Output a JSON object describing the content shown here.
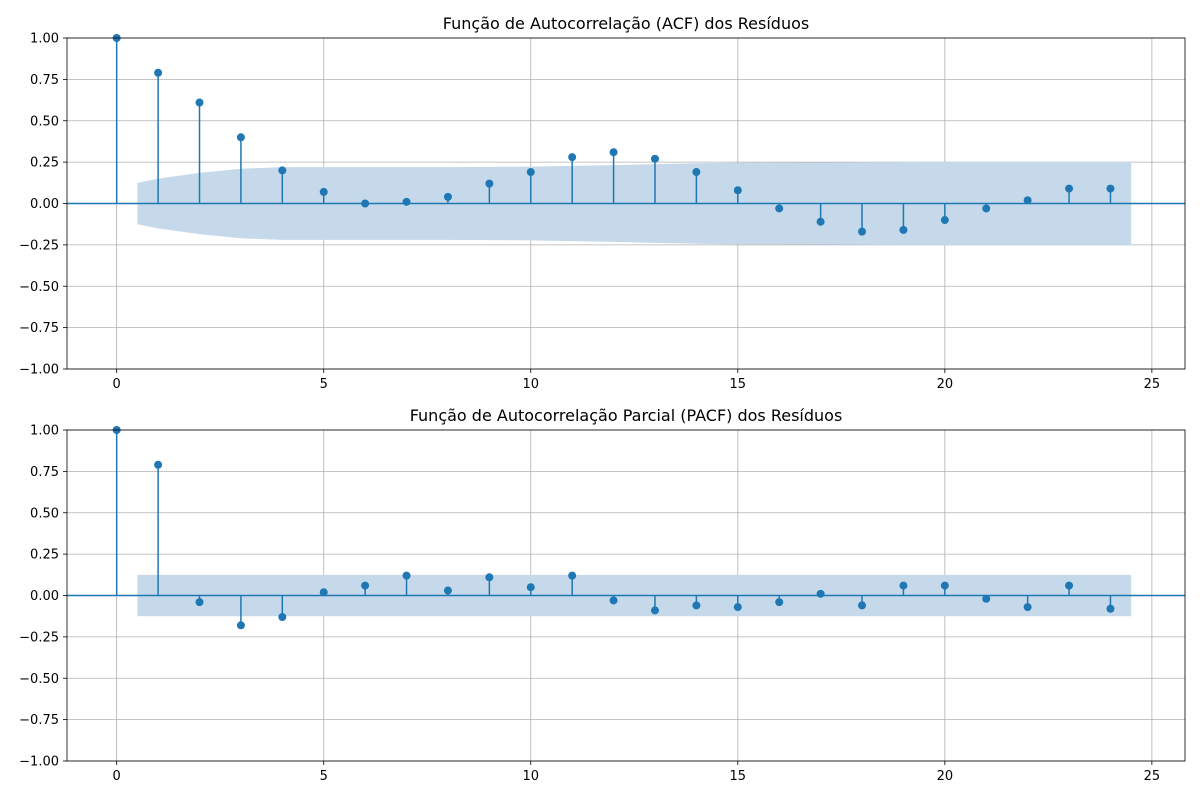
{
  "chart_data": [
    {
      "type": "stem",
      "title": "Função de Autocorrelação (ACF) dos Resíduos",
      "xlabel": "",
      "ylabel": "",
      "xlim": [
        -1.2,
        25.8
      ],
      "ylim": [
        -1.0,
        1.0
      ],
      "xticks": [
        0,
        5,
        10,
        15,
        20,
        25
      ],
      "yticks": [
        -1.0,
        -0.75,
        -0.5,
        -0.25,
        0.0,
        0.25,
        0.5,
        0.75,
        1.0
      ],
      "xtick_labels": [
        "0",
        "5",
        "10",
        "15",
        "20",
        "25"
      ],
      "ytick_labels": [
        "−1.00",
        "−0.75",
        "−0.50",
        "−0.25",
        "0.00",
        "0.25",
        "0.50",
        "0.75",
        "1.00"
      ],
      "grid": true,
      "lags": [
        0,
        1,
        2,
        3,
        4,
        5,
        6,
        7,
        8,
        9,
        10,
        11,
        12,
        13,
        14,
        15,
        16,
        17,
        18,
        19,
        20,
        21,
        22,
        23,
        24
      ],
      "values": [
        1.0,
        0.79,
        0.61,
        0.4,
        0.2,
        0.07,
        0.0,
        0.01,
        0.04,
        0.12,
        0.19,
        0.28,
        0.31,
        0.27,
        0.19,
        0.08,
        -0.03,
        -0.11,
        -0.17,
        -0.16,
        -0.1,
        -0.03,
        0.02,
        0.09,
        0.09
      ],
      "confidence_band": {
        "lags": [
          0.5,
          1,
          2,
          3,
          4,
          5,
          6,
          7,
          8,
          9,
          10,
          11,
          12,
          13,
          14,
          15,
          16,
          17,
          18,
          19,
          20,
          21,
          22,
          23,
          24,
          24.5
        ],
        "upper": [
          0.125,
          0.15,
          0.185,
          0.21,
          0.22,
          0.22,
          0.22,
          0.22,
          0.22,
          0.221,
          0.223,
          0.227,
          0.232,
          0.238,
          0.243,
          0.246,
          0.247,
          0.248,
          0.249,
          0.251,
          0.252,
          0.252,
          0.252,
          0.252,
          0.252,
          0.252
        ]
      },
      "colors": {
        "marker": "#1f77b4",
        "band": "#c5d9ea",
        "zero_line": "#1f77b4"
      }
    },
    {
      "type": "stem",
      "title": "Função de Autocorrelação Parcial (PACF) dos Resíduos",
      "xlabel": "",
      "ylabel": "",
      "xlim": [
        -1.2,
        25.8
      ],
      "ylim": [
        -1.0,
        1.0
      ],
      "xticks": [
        0,
        5,
        10,
        15,
        20,
        25
      ],
      "yticks": [
        -1.0,
        -0.75,
        -0.5,
        -0.25,
        0.0,
        0.25,
        0.5,
        0.75,
        1.0
      ],
      "xtick_labels": [
        "0",
        "5",
        "10",
        "15",
        "20",
        "25"
      ],
      "ytick_labels": [
        "−1.00",
        "−0.75",
        "−0.50",
        "−0.25",
        "0.00",
        "0.25",
        "0.50",
        "0.75",
        "1.00"
      ],
      "grid": true,
      "lags": [
        0,
        1,
        2,
        3,
        4,
        5,
        6,
        7,
        8,
        9,
        10,
        11,
        12,
        13,
        14,
        15,
        16,
        17,
        18,
        19,
        20,
        21,
        22,
        23,
        24
      ],
      "values": [
        1.0,
        0.79,
        -0.04,
        -0.18,
        -0.13,
        0.02,
        0.06,
        0.12,
        0.03,
        0.11,
        0.05,
        0.12,
        -0.03,
        -0.09,
        -0.06,
        -0.07,
        -0.04,
        0.01,
        -0.06,
        0.06,
        0.06,
        -0.02,
        -0.07,
        0.06,
        -0.08
      ],
      "confidence_band": {
        "lags": [
          0.5,
          24.5
        ],
        "upper": [
          0.125,
          0.125
        ]
      },
      "colors": {
        "marker": "#1f77b4",
        "band": "#c5d9ea",
        "zero_line": "#1f77b4"
      }
    }
  ]
}
